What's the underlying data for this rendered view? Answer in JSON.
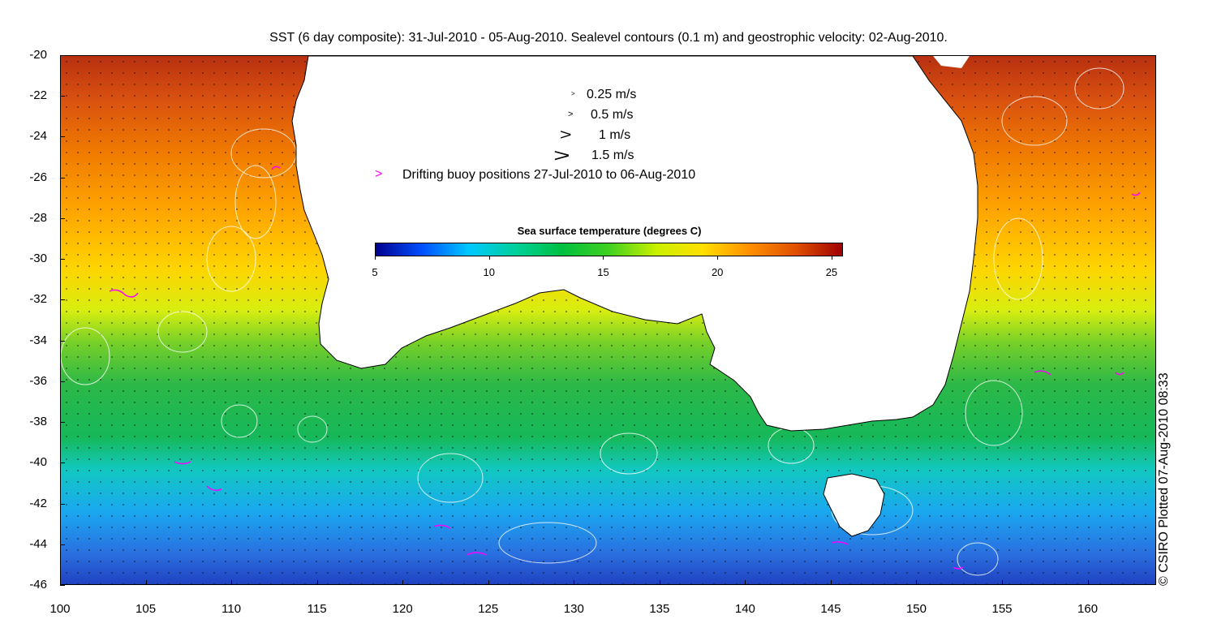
{
  "title": "SST (6 day composite): 31-Jul-2010 - 05-Aug-2010. Sealevel contours (0.1 m) and geostrophic velocity: 02-Aug-2010.",
  "axes": {
    "x_ticks": [
      "100",
      "105",
      "110",
      "115",
      "120",
      "125",
      "130",
      "135",
      "140",
      "145",
      "150",
      "155",
      "160"
    ],
    "x_values": [
      100,
      105,
      110,
      115,
      120,
      125,
      130,
      135,
      140,
      145,
      150,
      155,
      160
    ],
    "xlim": [
      100,
      164
    ],
    "y_ticks": [
      "-20",
      "-22",
      "-24",
      "-26",
      "-28",
      "-30",
      "-32",
      "-34",
      "-36",
      "-38",
      "-40",
      "-42",
      "-44",
      "-46"
    ],
    "y_values": [
      -20,
      -22,
      -24,
      -26,
      -28,
      -30,
      -32,
      -34,
      -36,
      -38,
      -40,
      -42,
      -44,
      -46
    ],
    "ylim": [
      -46,
      -20
    ]
  },
  "legend": {
    "speed_labels": [
      "0.25 m/s",
      "0.5 m/s",
      "1 m/s",
      "1.5 m/s"
    ],
    "buoy_label": "Drifting buoy positions 27-Jul-2010 to 06-Aug-2010",
    "buoy_color": "#ff00ff"
  },
  "colorbar": {
    "title": "Sea surface temperature (degrees C)",
    "ticks": [
      "5",
      "10",
      "15",
      "20",
      "25"
    ],
    "tick_values": [
      5,
      10,
      15,
      20,
      25
    ],
    "range": [
      5,
      25.5
    ],
    "colors": [
      "#00008f",
      "#0050ff",
      "#00c8ff",
      "#00d09a",
      "#00c040",
      "#40d020",
      "#c8f000",
      "#ffe000",
      "#ff9000",
      "#e05000",
      "#a00000"
    ]
  },
  "copyright": "© CSIRO Plotted 07-Aug-2010 08:33"
}
